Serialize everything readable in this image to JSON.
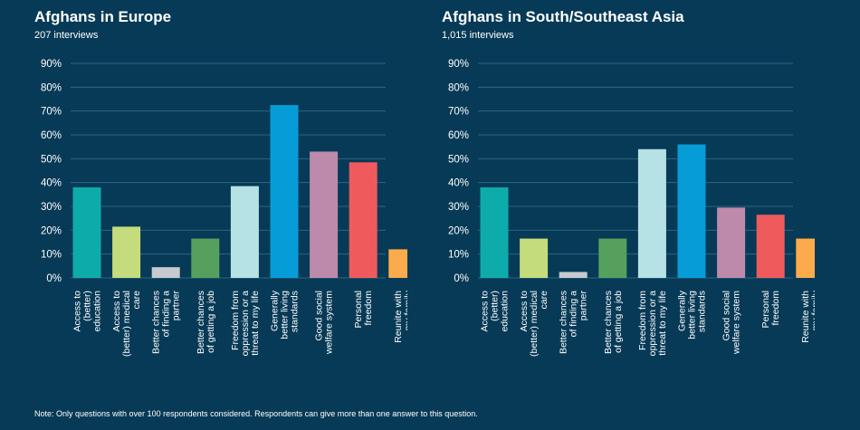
{
  "footnote": "Note: Only questions with over 100 respondents considered. Respondents can give more than one answer to this question.",
  "chart_data": [
    {
      "type": "bar",
      "title": "Afghans in Europe",
      "subtitle": "207 interviews",
      "ylim": [
        0,
        90
      ],
      "yticks": [
        "0%",
        "10%",
        "20%",
        "30%",
        "40%",
        "50%",
        "60%",
        "70%",
        "80%",
        "90%"
      ],
      "grid": true,
      "categories": [
        [
          "Access to",
          "(better)",
          "education"
        ],
        [
          "Access to",
          "(better) medical",
          "care"
        ],
        [
          "Better chances",
          "of finding a",
          "partner"
        ],
        [
          "Better chances",
          "of getting a job"
        ],
        [
          "Freedom from",
          "oppression or a",
          "threat to my life"
        ],
        [
          "Generally",
          "better living",
          "standards"
        ],
        [
          "Good social",
          "welfare system"
        ],
        [
          "Personal",
          "freedom"
        ],
        [
          "Reunite with",
          "my family"
        ]
      ],
      "values": [
        38,
        21.5,
        4.5,
        16.5,
        38.5,
        72.5,
        53,
        48.5,
        12
      ],
      "colors": [
        "#0eabab",
        "#c4dc7c",
        "#c6cacf",
        "#56a05e",
        "#b6e2e6",
        "#069cd7",
        "#bd8aab",
        "#ef5b5c",
        "#fcab4c"
      ]
    },
    {
      "type": "bar",
      "title": "Afghans in South/Southeast Asia",
      "subtitle": "1,015 interviews",
      "ylim": [
        0,
        90
      ],
      "yticks": [
        "0%",
        "10%",
        "20%",
        "30%",
        "40%",
        "50%",
        "60%",
        "70%",
        "80%",
        "90%"
      ],
      "grid": true,
      "categories": [
        [
          "Access to",
          "(better)",
          "education"
        ],
        [
          "Access to",
          "(better) medical",
          "care"
        ],
        [
          "Better chances",
          "of finding a",
          "partner"
        ],
        [
          "Better chances",
          "of getting a job"
        ],
        [
          "Freedom from",
          "oppression or a",
          "threat to my life"
        ],
        [
          "Generally",
          "better living",
          "standards"
        ],
        [
          "Good social",
          "welfare system"
        ],
        [
          "Personal",
          "freedom"
        ],
        [
          "Reunite with",
          "my family"
        ]
      ],
      "values": [
        38,
        16.5,
        2.5,
        16.5,
        54,
        56,
        29.5,
        26.5,
        16.5
      ],
      "colors": [
        "#0eabab",
        "#c4dc7c",
        "#c6cacf",
        "#56a05e",
        "#b6e2e6",
        "#069cd7",
        "#bd8aab",
        "#ef5b5c",
        "#fcab4c"
      ]
    }
  ]
}
